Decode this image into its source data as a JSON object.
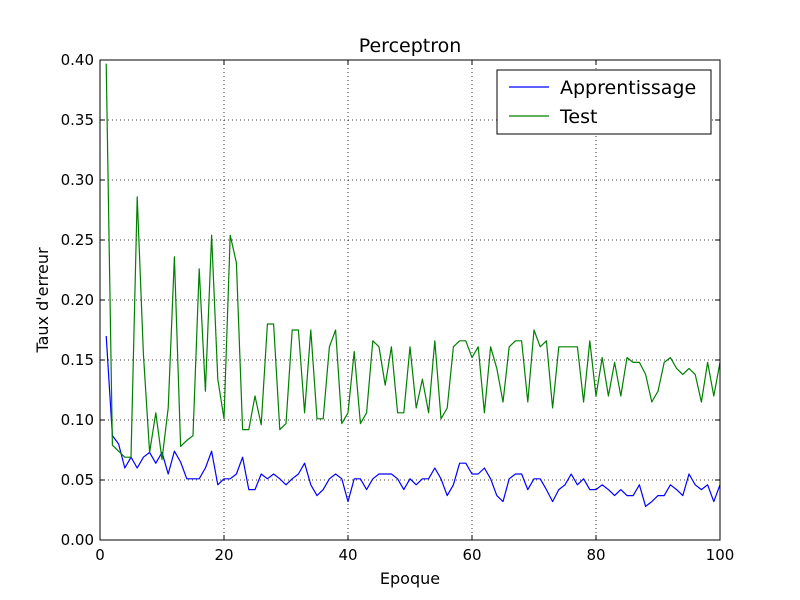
{
  "chart_data": {
    "type": "line",
    "title": "Perceptron",
    "xlabel": "Epoque",
    "ylabel": "Taux d'erreur",
    "xlim": [
      0,
      100
    ],
    "ylim": [
      0,
      0.4
    ],
    "xticks": [
      0,
      20,
      40,
      60,
      80,
      100
    ],
    "xtick_labels": [
      "0",
      "20",
      "40",
      "60",
      "80",
      "100"
    ],
    "yticks": [
      0,
      0.05,
      0.1,
      0.15,
      0.2,
      0.25,
      0.3,
      0.35,
      0.4
    ],
    "ytick_labels": [
      "0.00",
      "0.05",
      "0.10",
      "0.15",
      "0.20",
      "0.25",
      "0.30",
      "0.35",
      "0.40"
    ],
    "grid": true,
    "legend_position": "top-right",
    "series": [
      {
        "name": "Apprentissage",
        "color": "#0000ff",
        "x": [
          1,
          2,
          3,
          4,
          5,
          6,
          7,
          8,
          9,
          10,
          11,
          12,
          13,
          14,
          15,
          16,
          17,
          18,
          19,
          20,
          21,
          22,
          23,
          24,
          25,
          26,
          27,
          28,
          29,
          30,
          31,
          32,
          33,
          34,
          35,
          36,
          37,
          38,
          39,
          40,
          41,
          42,
          43,
          44,
          45,
          46,
          47,
          48,
          49,
          50,
          51,
          52,
          53,
          54,
          55,
          56,
          57,
          58,
          59,
          60,
          61,
          62,
          63,
          64,
          65,
          66,
          67,
          68,
          69,
          70,
          71,
          72,
          73,
          74,
          75,
          76,
          77,
          78,
          79,
          80,
          81,
          82,
          83,
          84,
          85,
          86,
          87,
          88,
          89,
          90,
          91,
          92,
          93,
          94,
          95,
          96,
          97,
          98,
          99,
          100
        ],
        "y": [
          0.17,
          0.087,
          0.08,
          0.06,
          0.069,
          0.06,
          0.069,
          0.073,
          0.064,
          0.073,
          0.055,
          0.074,
          0.065,
          0.051,
          0.051,
          0.051,
          0.06,
          0.074,
          0.046,
          0.051,
          0.051,
          0.055,
          0.069,
          0.042,
          0.042,
          0.055,
          0.051,
          0.055,
          0.051,
          0.046,
          0.051,
          0.055,
          0.064,
          0.046,
          0.037,
          0.042,
          0.051,
          0.055,
          0.051,
          0.032,
          0.051,
          0.051,
          0.042,
          0.051,
          0.055,
          0.055,
          0.055,
          0.051,
          0.042,
          0.051,
          0.046,
          0.051,
          0.051,
          0.06,
          0.051,
          0.037,
          0.046,
          0.064,
          0.064,
          0.055,
          0.055,
          0.06,
          0.051,
          0.037,
          0.032,
          0.051,
          0.055,
          0.055,
          0.042,
          0.051,
          0.051,
          0.042,
          0.032,
          0.042,
          0.046,
          0.055,
          0.046,
          0.051,
          0.042,
          0.042,
          0.046,
          0.042,
          0.037,
          0.042,
          0.037,
          0.037,
          0.046,
          0.028,
          0.032,
          0.037,
          0.037,
          0.046,
          0.042,
          0.037,
          0.055,
          0.046,
          0.042,
          0.046,
          0.032,
          0.046
        ]
      },
      {
        "name": "Test",
        "color": "#008000",
        "x": [
          1,
          2,
          3,
          4,
          5,
          6,
          7,
          8,
          9,
          10,
          11,
          12,
          13,
          14,
          15,
          16,
          17,
          18,
          19,
          20,
          21,
          22,
          23,
          24,
          25,
          26,
          27,
          28,
          29,
          30,
          31,
          32,
          33,
          34,
          35,
          36,
          37,
          38,
          39,
          40,
          41,
          42,
          43,
          44,
          45,
          46,
          47,
          48,
          49,
          50,
          51,
          52,
          53,
          54,
          55,
          56,
          57,
          58,
          59,
          60,
          61,
          62,
          63,
          64,
          65,
          66,
          67,
          68,
          69,
          70,
          71,
          72,
          73,
          74,
          75,
          76,
          77,
          78,
          79,
          80,
          81,
          82,
          83,
          84,
          85,
          86,
          87,
          88,
          89,
          90,
          91,
          92,
          93,
          94,
          95,
          96,
          97,
          98,
          99,
          100
        ],
        "y": [
          0.397,
          0.079,
          0.074,
          0.069,
          0.069,
          0.286,
          0.155,
          0.073,
          0.106,
          0.067,
          0.11,
          0.236,
          0.078,
          0.083,
          0.087,
          0.226,
          0.124,
          0.254,
          0.134,
          0.101,
          0.254,
          0.231,
          0.092,
          0.092,
          0.12,
          0.096,
          0.18,
          0.18,
          0.092,
          0.097,
          0.175,
          0.175,
          0.106,
          0.175,
          0.101,
          0.101,
          0.161,
          0.175,
          0.097,
          0.106,
          0.157,
          0.097,
          0.106,
          0.166,
          0.161,
          0.129,
          0.161,
          0.106,
          0.106,
          0.161,
          0.11,
          0.134,
          0.106,
          0.166,
          0.101,
          0.11,
          0.161,
          0.166,
          0.166,
          0.152,
          0.161,
          0.106,
          0.161,
          0.143,
          0.115,
          0.161,
          0.166,
          0.166,
          0.115,
          0.175,
          0.161,
          0.166,
          0.11,
          0.161,
          0.161,
          0.161,
          0.161,
          0.115,
          0.166,
          0.12,
          0.152,
          0.12,
          0.148,
          0.12,
          0.152,
          0.148,
          0.148,
          0.138,
          0.115,
          0.124,
          0.148,
          0.152,
          0.143,
          0.138,
          0.143,
          0.138,
          0.115,
          0.148,
          0.12,
          0.148
        ]
      }
    ]
  }
}
